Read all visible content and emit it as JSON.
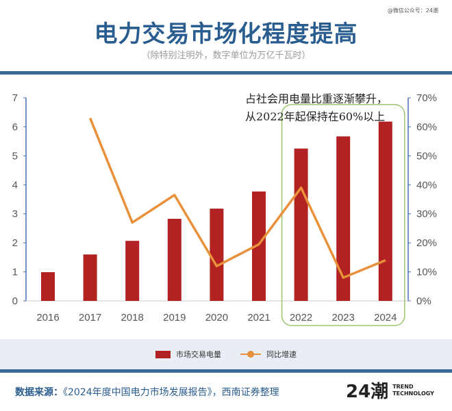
{
  "watermark": "@微信公众号：24潮",
  "header": {
    "title": "电力交易市场化程度提高",
    "subtitle": "（除特别注明外，数字单位为万亿千瓦时）"
  },
  "annotation": {
    "line1": "占社会用电量比重逐渐攀升，",
    "line2": "从2022年起保持在60%以上"
  },
  "chart_data": {
    "type": "bar+line",
    "categories": [
      "2016",
      "2017",
      "2018",
      "2019",
      "2020",
      "2021",
      "2022",
      "2023",
      "2024"
    ],
    "series": [
      {
        "name": "市场交易电量",
        "type": "bar",
        "axis": "left",
        "color": "#b22222",
        "values": [
          0.99,
          1.6,
          2.07,
          2.83,
          3.18,
          3.77,
          5.25,
          5.67,
          6.18
        ]
      },
      {
        "name": "同比增速",
        "type": "line",
        "axis": "right",
        "color": "#e8913a",
        "values": [
          null,
          63,
          27,
          36.5,
          12,
          19.5,
          39,
          8,
          14
        ]
      }
    ],
    "y_left": {
      "range": [
        0,
        7
      ],
      "ticks": [
        "0",
        "1",
        "2",
        "3",
        "4",
        "5",
        "6",
        "7"
      ]
    },
    "y_right": {
      "range": [
        0,
        70
      ],
      "ticks": [
        "0%",
        "10%",
        "20%",
        "30%",
        "40%",
        "50%",
        "60%",
        "70%"
      ]
    },
    "highlight": [
      "2022",
      "2024"
    ],
    "highlight_color": "#9ac56a",
    "grid": false,
    "legend_position": "bottom"
  },
  "legend": {
    "bar": "市场交易电量",
    "line": "同比增速"
  },
  "footer": {
    "source_label": "数据来源：",
    "source_text": "《2024年度中国电力市场发展报告》，西南证券整理",
    "logo": "24潮",
    "logo_en1": "TREND",
    "logo_en2": "TECHNOLOGY"
  }
}
